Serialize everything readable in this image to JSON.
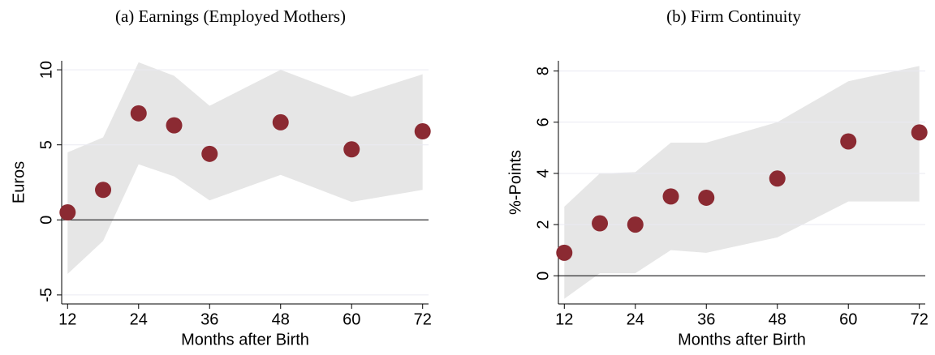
{
  "chart_data": [
    {
      "type": "scatter",
      "title": "(a) Earnings (Employed Mothers)",
      "xlabel": "Months after Birth",
      "ylabel": "Euros",
      "x": [
        12,
        18,
        24,
        30,
        36,
        48,
        60,
        72
      ],
      "values": [
        0.5,
        2.0,
        7.1,
        6.3,
        4.4,
        6.5,
        4.7,
        5.9
      ],
      "lower": [
        -3.6,
        -1.4,
        3.7,
        2.9,
        1.3,
        3.0,
        1.2,
        2.0
      ],
      "upper": [
        4.5,
        5.5,
        10.5,
        9.6,
        7.6,
        10.0,
        8.2,
        9.7
      ],
      "color": "#8b2a32",
      "band_color": "#e6e6e6",
      "xlim": [
        11,
        73
      ],
      "ylim": [
        -5.6,
        10.6
      ],
      "xticks": [
        12,
        24,
        36,
        48,
        60,
        72
      ],
      "yticks": [
        -5,
        0,
        5,
        10
      ],
      "grid": true
    },
    {
      "type": "scatter",
      "title": "(b) Firm Continuity",
      "xlabel": "Months after Birth",
      "ylabel": "%-Points",
      "x": [
        12,
        18,
        24,
        30,
        36,
        48,
        60,
        72
      ],
      "values": [
        0.9,
        2.05,
        2.0,
        3.1,
        3.05,
        3.8,
        5.25,
        5.6
      ],
      "lower": [
        -0.9,
        0.1,
        0.1,
        1.0,
        0.9,
        1.5,
        2.9,
        2.9
      ],
      "upper": [
        2.7,
        4.0,
        4.05,
        5.2,
        5.2,
        6.0,
        7.6,
        8.2
      ],
      "color": "#8b2a32",
      "band_color": "#e6e6e6",
      "xlim": [
        11,
        73
      ],
      "ylim": [
        -1.1,
        8.4
      ],
      "xticks": [
        12,
        24,
        36,
        48,
        60,
        72
      ],
      "yticks": [
        0,
        2,
        4,
        6,
        8
      ],
      "grid": true
    }
  ]
}
